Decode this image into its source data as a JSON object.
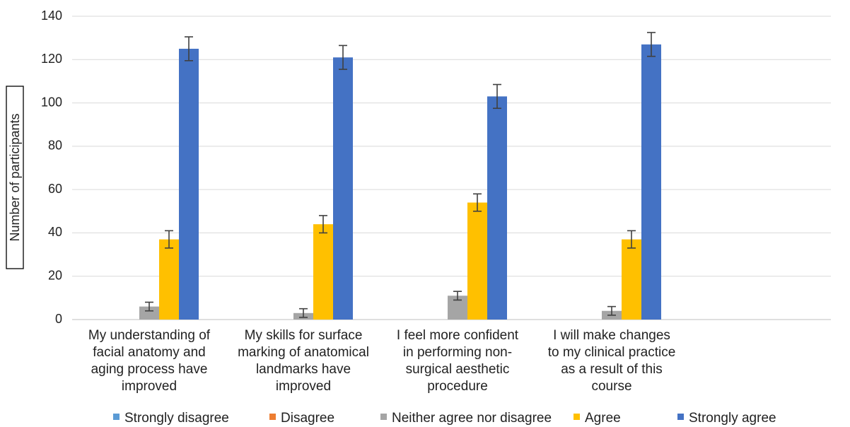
{
  "chart_data": {
    "type": "bar",
    "title": "",
    "xlabel": "",
    "ylabel": "Number of participants",
    "ylim": [
      0,
      140
    ],
    "yticks": [
      0,
      20,
      40,
      60,
      80,
      100,
      120,
      140
    ],
    "grid": true,
    "legend_position": "bottom",
    "categories": [
      [
        "My understanding of",
        "facial anatomy and",
        "aging process have",
        "improved"
      ],
      [
        "My skills for surface",
        "marking of anatomical",
        "landmarks have",
        "improved"
      ],
      [
        "I feel more confident",
        "in performing non-",
        "surgical aesthetic",
        "procedure"
      ],
      [
        "I will make changes",
        "to my clinical practice",
        "as a result of this",
        "course"
      ]
    ],
    "series": [
      {
        "name": "Strongly disagree",
        "color": "#5B9BD5",
        "values": [
          0,
          0,
          0,
          0
        ],
        "errors": [
          0,
          0,
          0,
          0
        ]
      },
      {
        "name": "Disagree",
        "color": "#ED7D31",
        "values": [
          0,
          0,
          0,
          0
        ],
        "errors": [
          0,
          0,
          0,
          0
        ]
      },
      {
        "name": "Neither agree nor disagree",
        "color": "#A5A5A5",
        "values": [
          6,
          3,
          11,
          4
        ],
        "errors": [
          2,
          2,
          2,
          2
        ]
      },
      {
        "name": "Agree",
        "color": "#FFC000",
        "values": [
          37,
          44,
          54,
          37
        ],
        "errors": [
          4,
          4,
          4,
          4
        ]
      },
      {
        "name": "Strongly agree",
        "color": "#4472C4",
        "values": [
          125,
          121,
          103,
          127
        ],
        "errors": [
          5.5,
          5.5,
          5.5,
          5.5
        ]
      }
    ]
  }
}
